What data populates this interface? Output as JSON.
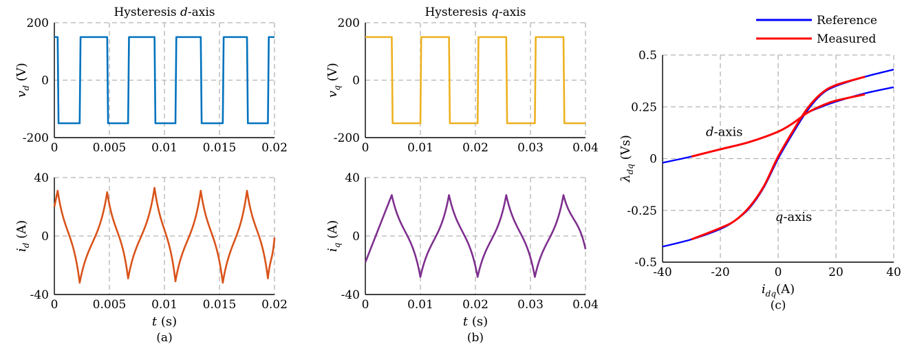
{
  "colors": {
    "vd": "#0072BD",
    "id": "#D95319",
    "vq": "#EDB120",
    "iq": "#7E2F8E",
    "reference": "#0000FF",
    "measured": "#FF0000",
    "grid": "#b3b3b3"
  },
  "chart_data": [
    {
      "id": "vd",
      "type": "line",
      "title_pre": "Hysteresis ",
      "title_ital": "d",
      "title_post": "-axis",
      "ylabel_sym": "v",
      "ylabel_sub": "d",
      "ylabel_unit": " (V)",
      "xlim": [
        0,
        0.02
      ],
      "ylim": [
        -200,
        200
      ],
      "xticks": [
        "0",
        "0.005",
        "0.01",
        "0.015",
        "0.02"
      ],
      "yticks": [
        "-200",
        "0",
        "200"
      ],
      "grid": true,
      "series": [
        {
          "high": 150,
          "low": -150,
          "start": "high",
          "switch_times": [
            0.0003,
            0.0023,
            0.0048,
            0.0067,
            0.0091,
            0.011,
            0.0133,
            0.0153,
            0.0175,
            0.0194
          ]
        }
      ]
    },
    {
      "id": "id",
      "type": "line",
      "ylabel_sym": "i",
      "ylabel_sub": "d",
      "ylabel_unit": " (A)",
      "xlabel_sym": "t",
      "xlabel_unit": " (s)",
      "caption": "(a)",
      "xlim": [
        0,
        0.02
      ],
      "ylim": [
        -40,
        40
      ],
      "xticks": [
        "0",
        "0.005",
        "0.01",
        "0.015",
        "0.02"
      ],
      "yticks": [
        "-40",
        "0",
        "40"
      ],
      "grid": true,
      "series": [
        {
          "start_value": 20,
          "points": [
            [
              0.0003,
              31
            ],
            [
              0.0023,
              -32
            ],
            [
              0.0048,
              30
            ],
            [
              0.0067,
              -29
            ],
            [
              0.0091,
              33
            ],
            [
              0.011,
              -31
            ],
            [
              0.0133,
              31
            ],
            [
              0.0153,
              -32
            ],
            [
              0.0175,
              31
            ],
            [
              0.0194,
              -29
            ]
          ],
          "end_value": -1
        }
      ]
    },
    {
      "id": "vq",
      "type": "line",
      "title_pre": "Hysteresis ",
      "title_ital": "q",
      "title_post": "-axis",
      "ylabel_sym": "v",
      "ylabel_sub": "q",
      "ylabel_unit": " (V)",
      "xlim": [
        0,
        0.04
      ],
      "ylim": [
        -200,
        200
      ],
      "xticks": [
        "0",
        "0.01",
        "0.02",
        "0.03",
        "0.04"
      ],
      "yticks": [
        "-200",
        "0",
        "200"
      ],
      "grid": true,
      "series": [
        {
          "high": 150,
          "low": -150,
          "start": "high",
          "switch_times": [
            0.0048,
            0.01,
            0.0152,
            0.0204,
            0.0256,
            0.0308,
            0.036
          ]
        }
      ]
    },
    {
      "id": "iq",
      "type": "line",
      "ylabel_sym": "i",
      "ylabel_sub": "q",
      "ylabel_unit": " (A)",
      "xlabel_sym": "t",
      "xlabel_unit": " (s)",
      "caption": "(b)",
      "xlim": [
        0,
        0.04
      ],
      "ylim": [
        -40,
        40
      ],
      "xticks": [
        "0",
        "0.01",
        "0.02",
        "0.03",
        "0.04"
      ],
      "yticks": [
        "-40",
        "0",
        "40"
      ],
      "grid": true,
      "series": [
        {
          "start_value": -18,
          "points": [
            [
              0.0048,
              28
            ],
            [
              0.01,
              -28
            ],
            [
              0.0152,
              28
            ],
            [
              0.0204,
              -28
            ],
            [
              0.0256,
              28
            ],
            [
              0.0308,
              -28
            ],
            [
              0.036,
              28
            ]
          ],
          "end_value": -9
        }
      ]
    },
    {
      "id": "flux",
      "type": "line",
      "ylabel_sym": "λ",
      "ylabel_sub": "dq",
      "ylabel_unit": " (Vs)",
      "xlabel_sym": "i",
      "xlabel_sub": "dq",
      "xlabel_unit": "(A)",
      "caption": "(c)",
      "xlim": [
        -40,
        40
      ],
      "ylim": [
        -0.5,
        0.5
      ],
      "xticks": [
        "-40",
        "-20",
        "0",
        "20",
        "40"
      ],
      "yticks": [
        "-0.5",
        "-0.25",
        "0",
        "0.25",
        "0.5"
      ],
      "grid": true,
      "legend": {
        "placement": "top-right",
        "entries": [
          "Reference",
          "Measured"
        ]
      },
      "annotations": [
        {
          "ital": "d",
          "text": "-axis",
          "x": -25,
          "y": 0.11
        },
        {
          "ital": "q",
          "text": "-axis",
          "x": -1,
          "y": -0.3
        }
      ],
      "series": [
        {
          "name": "Reference",
          "curve": "d-axis",
          "x": [
            -40,
            -30,
            -20,
            -10,
            0,
            5,
            10,
            15,
            20,
            30,
            40
          ],
          "y": [
            -0.02,
            0.01,
            0.045,
            0.08,
            0.13,
            0.17,
            0.22,
            0.25,
            0.275,
            0.315,
            0.345
          ]
        },
        {
          "name": "Reference",
          "curve": "q-axis",
          "x": [
            -40,
            -30,
            -20,
            -15,
            -10,
            -5,
            0,
            5,
            10,
            15,
            20,
            30,
            40
          ],
          "y": [
            -0.425,
            -0.39,
            -0.34,
            -0.3,
            -0.24,
            -0.14,
            0,
            0.12,
            0.23,
            0.31,
            0.35,
            0.395,
            0.43
          ]
        },
        {
          "name": "Measured",
          "curve": "d-axis",
          "x": [
            -30,
            -20,
            -10,
            0,
            5,
            10,
            15,
            20,
            30
          ],
          "y": [
            0.01,
            0.045,
            0.08,
            0.13,
            0.17,
            0.22,
            0.255,
            0.28,
            0.31
          ]
        },
        {
          "name": "Measured",
          "curve": "q-axis",
          "x": [
            -30,
            -20,
            -15,
            -10,
            -5,
            0,
            5,
            10,
            15,
            20,
            30
          ],
          "y": [
            -0.39,
            -0.335,
            -0.3,
            -0.235,
            -0.135,
            0.01,
            0.13,
            0.24,
            0.315,
            0.355,
            0.395
          ]
        }
      ]
    }
  ]
}
